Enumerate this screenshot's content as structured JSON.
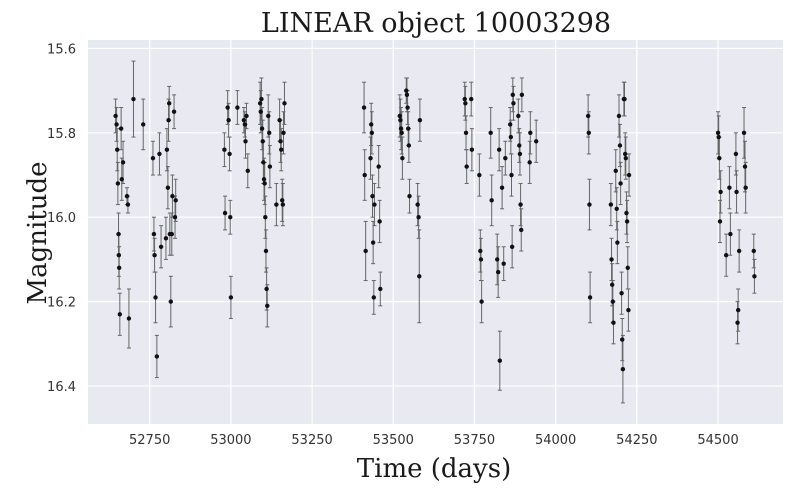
{
  "chart_data": {
    "type": "scatter",
    "title": "LINEAR object 10003298",
    "xlabel": "Time (days)",
    "ylabel": "Magnitude",
    "xlim": [
      52560,
      54700
    ],
    "ylim": [
      16.49,
      15.58
    ],
    "y_inverted": true,
    "xticks": [
      52750,
      53000,
      53250,
      53500,
      53750,
      54000,
      54250,
      54500
    ],
    "yticks": [
      15.6,
      15.8,
      16.0,
      16.2,
      16.4
    ],
    "grid": true,
    "colors": {
      "background": "#e9e9f1",
      "grid": "#ffffff",
      "marker": "#111111",
      "errorbar": "#666666"
    },
    "points": [
      {
        "x": 52645,
        "y": 15.76,
        "err": 0.04
      },
      {
        "x": 52648,
        "y": 15.78,
        "err": 0.04
      },
      {
        "x": 52650,
        "y": 15.84,
        "err": 0.05
      },
      {
        "x": 52652,
        "y": 15.92,
        "err": 0.05
      },
      {
        "x": 52654,
        "y": 16.04,
        "err": 0.05
      },
      {
        "x": 52655,
        "y": 16.09,
        "err": 0.05
      },
      {
        "x": 52656,
        "y": 16.12,
        "err": 0.05
      },
      {
        "x": 52658,
        "y": 16.23,
        "err": 0.05
      },
      {
        "x": 52662,
        "y": 15.79,
        "err": 0.05
      },
      {
        "x": 52664,
        "y": 15.91,
        "err": 0.05
      },
      {
        "x": 52668,
        "y": 15.87,
        "err": 0.05
      },
      {
        "x": 52680,
        "y": 15.95,
        "err": 0.02
      },
      {
        "x": 52683,
        "y": 15.97,
        "err": 0.02
      },
      {
        "x": 52686,
        "y": 16.24,
        "err": 0.07
      },
      {
        "x": 52700,
        "y": 15.72,
        "err": 0.09
      },
      {
        "x": 52730,
        "y": 15.78,
        "err": 0.06
      },
      {
        "x": 52760,
        "y": 15.86,
        "err": 0.04
      },
      {
        "x": 52763,
        "y": 16.04,
        "err": 0.04
      },
      {
        "x": 52765,
        "y": 16.09,
        "err": 0.04
      },
      {
        "x": 52768,
        "y": 16.19,
        "err": 0.06
      },
      {
        "x": 52772,
        "y": 16.33,
        "err": 0.05
      },
      {
        "x": 52780,
        "y": 15.85,
        "err": 0.05
      },
      {
        "x": 52785,
        "y": 16.07,
        "err": 0.05
      },
      {
        "x": 52800,
        "y": 16.05,
        "err": 0.05
      },
      {
        "x": 52803,
        "y": 15.84,
        "err": 0.05
      },
      {
        "x": 52806,
        "y": 15.93,
        "err": 0.05
      },
      {
        "x": 52808,
        "y": 15.77,
        "err": 0.05
      },
      {
        "x": 52810,
        "y": 15.73,
        "err": 0.04
      },
      {
        "x": 52812,
        "y": 16.04,
        "err": 0.05
      },
      {
        "x": 52815,
        "y": 16.2,
        "err": 0.06
      },
      {
        "x": 52818,
        "y": 16.04,
        "err": 0.05
      },
      {
        "x": 52820,
        "y": 15.95,
        "err": 0.05
      },
      {
        "x": 52825,
        "y": 15.75,
        "err": 0.04
      },
      {
        "x": 52828,
        "y": 16.0,
        "err": 0.05
      },
      {
        "x": 52830,
        "y": 15.96,
        "err": 0.05
      },
      {
        "x": 52980,
        "y": 15.84,
        "err": 0.04
      },
      {
        "x": 52982,
        "y": 15.99,
        "err": 0.04
      },
      {
        "x": 52990,
        "y": 15.74,
        "err": 0.04
      },
      {
        "x": 52993,
        "y": 15.77,
        "err": 0.04
      },
      {
        "x": 52996,
        "y": 15.85,
        "err": 0.04
      },
      {
        "x": 52998,
        "y": 16.0,
        "err": 0.04
      },
      {
        "x": 53000,
        "y": 16.19,
        "err": 0.05
      },
      {
        "x": 53020,
        "y": 15.74,
        "err": 0.04
      },
      {
        "x": 53040,
        "y": 15.77,
        "err": 0.03
      },
      {
        "x": 53043,
        "y": 15.78,
        "err": 0.03
      },
      {
        "x": 53045,
        "y": 15.82,
        "err": 0.04
      },
      {
        "x": 53048,
        "y": 15.76,
        "err": 0.03
      },
      {
        "x": 53052,
        "y": 15.89,
        "err": 0.04
      },
      {
        "x": 53090,
        "y": 15.73,
        "err": 0.05
      },
      {
        "x": 53092,
        "y": 15.75,
        "err": 0.05
      },
      {
        "x": 53094,
        "y": 15.72,
        "err": 0.05
      },
      {
        "x": 53096,
        "y": 15.79,
        "err": 0.05
      },
      {
        "x": 53098,
        "y": 15.82,
        "err": 0.05
      },
      {
        "x": 53100,
        "y": 15.87,
        "err": 0.05
      },
      {
        "x": 53102,
        "y": 15.91,
        "err": 0.05
      },
      {
        "x": 53104,
        "y": 15.92,
        "err": 0.05
      },
      {
        "x": 53106,
        "y": 16.0,
        "err": 0.05
      },
      {
        "x": 53108,
        "y": 16.08,
        "err": 0.05
      },
      {
        "x": 53110,
        "y": 16.17,
        "err": 0.05
      },
      {
        "x": 53112,
        "y": 16.21,
        "err": 0.05
      },
      {
        "x": 53115,
        "y": 15.76,
        "err": 0.05
      },
      {
        "x": 53118,
        "y": 15.8,
        "err": 0.05
      },
      {
        "x": 53120,
        "y": 15.88,
        "err": 0.05
      },
      {
        "x": 53140,
        "y": 15.97,
        "err": 0.05
      },
      {
        "x": 53150,
        "y": 15.77,
        "err": 0.05
      },
      {
        "x": 53153,
        "y": 15.82,
        "err": 0.05
      },
      {
        "x": 53155,
        "y": 15.84,
        "err": 0.05
      },
      {
        "x": 53158,
        "y": 15.96,
        "err": 0.05
      },
      {
        "x": 53160,
        "y": 15.97,
        "err": 0.05
      },
      {
        "x": 53162,
        "y": 15.8,
        "err": 0.05
      },
      {
        "x": 53165,
        "y": 15.73,
        "err": 0.05
      },
      {
        "x": 53410,
        "y": 15.74,
        "err": 0.06
      },
      {
        "x": 53412,
        "y": 15.9,
        "err": 0.06
      },
      {
        "x": 53415,
        "y": 16.08,
        "err": 0.07
      },
      {
        "x": 53430,
        "y": 15.86,
        "err": 0.05
      },
      {
        "x": 53432,
        "y": 15.78,
        "err": 0.05
      },
      {
        "x": 53434,
        "y": 15.8,
        "err": 0.05
      },
      {
        "x": 53436,
        "y": 15.95,
        "err": 0.05
      },
      {
        "x": 53438,
        "y": 16.06,
        "err": 0.05
      },
      {
        "x": 53440,
        "y": 16.19,
        "err": 0.04
      },
      {
        "x": 53442,
        "y": 15.97,
        "err": 0.05
      },
      {
        "x": 53455,
        "y": 15.88,
        "err": 0.05
      },
      {
        "x": 53458,
        "y": 16.01,
        "err": 0.05
      },
      {
        "x": 53460,
        "y": 16.17,
        "err": 0.04
      },
      {
        "x": 53520,
        "y": 15.76,
        "err": 0.05
      },
      {
        "x": 53522,
        "y": 15.77,
        "err": 0.05
      },
      {
        "x": 53524,
        "y": 15.79,
        "err": 0.05
      },
      {
        "x": 53526,
        "y": 15.8,
        "err": 0.05
      },
      {
        "x": 53528,
        "y": 15.86,
        "err": 0.05
      },
      {
        "x": 53540,
        "y": 15.7,
        "err": 0.03
      },
      {
        "x": 53542,
        "y": 15.71,
        "err": 0.04
      },
      {
        "x": 53544,
        "y": 15.74,
        "err": 0.04
      },
      {
        "x": 53546,
        "y": 15.79,
        "err": 0.04
      },
      {
        "x": 53548,
        "y": 15.83,
        "err": 0.04
      },
      {
        "x": 53550,
        "y": 15.95,
        "err": 0.04
      },
      {
        "x": 53575,
        "y": 15.97,
        "err": 0.05
      },
      {
        "x": 53578,
        "y": 16.0,
        "err": 0.05
      },
      {
        "x": 53580,
        "y": 16.14,
        "err": 0.11
      },
      {
        "x": 53582,
        "y": 15.77,
        "err": 0.05
      },
      {
        "x": 53720,
        "y": 15.72,
        "err": 0.04
      },
      {
        "x": 53722,
        "y": 15.73,
        "err": 0.04
      },
      {
        "x": 53724,
        "y": 15.8,
        "err": 0.04
      },
      {
        "x": 53726,
        "y": 15.88,
        "err": 0.04
      },
      {
        "x": 53740,
        "y": 15.72,
        "err": 0.04
      },
      {
        "x": 53742,
        "y": 15.84,
        "err": 0.05
      },
      {
        "x": 53765,
        "y": 15.9,
        "err": 0.05
      },
      {
        "x": 53768,
        "y": 16.08,
        "err": 0.05
      },
      {
        "x": 53770,
        "y": 16.1,
        "err": 0.05
      },
      {
        "x": 53772,
        "y": 16.2,
        "err": 0.05
      },
      {
        "x": 53800,
        "y": 15.8,
        "err": 0.06
      },
      {
        "x": 53803,
        "y": 15.96,
        "err": 0.06
      },
      {
        "x": 53820,
        "y": 16.1,
        "err": 0.06
      },
      {
        "x": 53823,
        "y": 16.13,
        "err": 0.06
      },
      {
        "x": 53826,
        "y": 15.84,
        "err": 0.05
      },
      {
        "x": 53828,
        "y": 16.34,
        "err": 0.07
      },
      {
        "x": 53835,
        "y": 15.93,
        "err": 0.05
      },
      {
        "x": 53840,
        "y": 16.11,
        "err": 0.04
      },
      {
        "x": 53845,
        "y": 15.86,
        "err": 0.04
      },
      {
        "x": 53860,
        "y": 15.78,
        "err": 0.04
      },
      {
        "x": 53862,
        "y": 15.81,
        "err": 0.04
      },
      {
        "x": 53864,
        "y": 15.9,
        "err": 0.05
      },
      {
        "x": 53866,
        "y": 16.07,
        "err": 0.05
      },
      {
        "x": 53868,
        "y": 15.71,
        "err": 0.04
      },
      {
        "x": 53870,
        "y": 15.73,
        "err": 0.04
      },
      {
        "x": 53885,
        "y": 15.76,
        "err": 0.04
      },
      {
        "x": 53888,
        "y": 15.83,
        "err": 0.04
      },
      {
        "x": 53890,
        "y": 15.85,
        "err": 0.05
      },
      {
        "x": 53892,
        "y": 15.97,
        "err": 0.05
      },
      {
        "x": 53894,
        "y": 16.03,
        "err": 0.05
      },
      {
        "x": 53896,
        "y": 15.71,
        "err": 0.04
      },
      {
        "x": 53920,
        "y": 15.87,
        "err": 0.05
      },
      {
        "x": 53922,
        "y": 15.8,
        "err": 0.05
      },
      {
        "x": 53940,
        "y": 15.82,
        "err": 0.05
      },
      {
        "x": 54100,
        "y": 15.76,
        "err": 0.05
      },
      {
        "x": 54102,
        "y": 15.8,
        "err": 0.05
      },
      {
        "x": 54104,
        "y": 15.97,
        "err": 0.06
      },
      {
        "x": 54106,
        "y": 16.19,
        "err": 0.06
      },
      {
        "x": 54170,
        "y": 15.97,
        "err": 0.05
      },
      {
        "x": 54172,
        "y": 16.1,
        "err": 0.05
      },
      {
        "x": 54174,
        "y": 16.16,
        "err": 0.05
      },
      {
        "x": 54176,
        "y": 16.2,
        "err": 0.05
      },
      {
        "x": 54178,
        "y": 16.25,
        "err": 0.05
      },
      {
        "x": 54185,
        "y": 15.89,
        "err": 0.05
      },
      {
        "x": 54188,
        "y": 15.98,
        "err": 0.05
      },
      {
        "x": 54190,
        "y": 16.06,
        "err": 0.05
      },
      {
        "x": 54195,
        "y": 15.76,
        "err": 0.05
      },
      {
        "x": 54198,
        "y": 15.83,
        "err": 0.05
      },
      {
        "x": 54200,
        "y": 15.92,
        "err": 0.05
      },
      {
        "x": 54203,
        "y": 16.18,
        "err": 0.05
      },
      {
        "x": 54205,
        "y": 16.29,
        "err": 0.05
      },
      {
        "x": 54207,
        "y": 16.36,
        "err": 0.08
      },
      {
        "x": 54210,
        "y": 15.72,
        "err": 0.04
      },
      {
        "x": 54212,
        "y": 15.72,
        "err": 0.04
      },
      {
        "x": 54214,
        "y": 15.85,
        "err": 0.05
      },
      {
        "x": 54216,
        "y": 15.86,
        "err": 0.05
      },
      {
        "x": 54218,
        "y": 15.99,
        "err": 0.05
      },
      {
        "x": 54220,
        "y": 16.01,
        "err": 0.05
      },
      {
        "x": 54222,
        "y": 16.12,
        "err": 0.05
      },
      {
        "x": 54224,
        "y": 16.22,
        "err": 0.05
      },
      {
        "x": 54226,
        "y": 15.9,
        "err": 0.05
      },
      {
        "x": 54500,
        "y": 15.8,
        "err": 0.05
      },
      {
        "x": 54502,
        "y": 15.81,
        "err": 0.05
      },
      {
        "x": 54504,
        "y": 15.86,
        "err": 0.05
      },
      {
        "x": 54506,
        "y": 16.01,
        "err": 0.05
      },
      {
        "x": 54508,
        "y": 15.94,
        "err": 0.05
      },
      {
        "x": 54525,
        "y": 16.09,
        "err": 0.05
      },
      {
        "x": 54535,
        "y": 15.93,
        "err": 0.05
      },
      {
        "x": 54538,
        "y": 16.04,
        "err": 0.05
      },
      {
        "x": 54555,
        "y": 15.85,
        "err": 0.05
      },
      {
        "x": 54557,
        "y": 15.94,
        "err": 0.05
      },
      {
        "x": 54560,
        "y": 16.25,
        "err": 0.05
      },
      {
        "x": 54562,
        "y": 16.22,
        "err": 0.05
      },
      {
        "x": 54565,
        "y": 16.08,
        "err": 0.05
      },
      {
        "x": 54580,
        "y": 15.8,
        "err": 0.06
      },
      {
        "x": 54583,
        "y": 15.88,
        "err": 0.06
      },
      {
        "x": 54585,
        "y": 15.93,
        "err": 0.06
      },
      {
        "x": 54610,
        "y": 16.08,
        "err": 0.04
      },
      {
        "x": 54612,
        "y": 16.14,
        "err": 0.04
      }
    ]
  }
}
